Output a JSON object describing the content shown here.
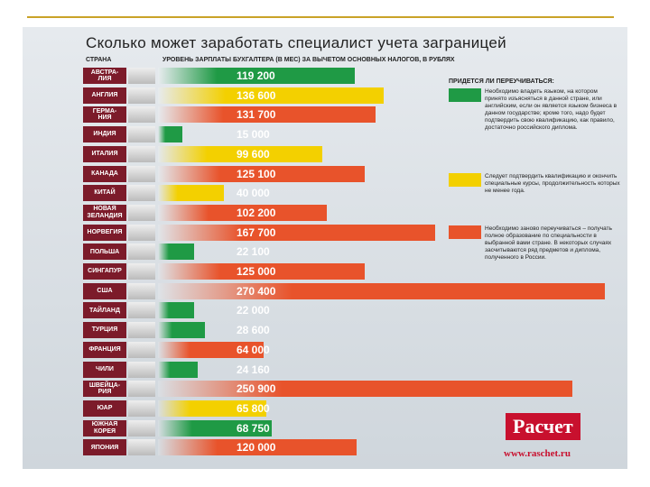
{
  "chart_data": {
    "type": "bar",
    "title": "Сколько может заработать специалист учета заграницей",
    "category_header": "СТРАНА",
    "value_header": "УРОВЕНЬ ЗАРПЛАТЫ БУХГАЛТЕРА (В МЕС) ЗА ВЫЧЕТОМ ОСНОВНЫХ НАЛОГОВ, В РУБЛЯХ",
    "categories": [
      "АВСТРА-\nЛИЯ",
      "АНГЛИЯ",
      "ГЕРМА-\nНИЯ",
      "ИНДИЯ",
      "ИТАЛИЯ",
      "КАНАДА",
      "КИТАЙ",
      "НОВАЯ\nЗЕЛАНДИЯ",
      "НОРВЕГИЯ",
      "ПОЛЬША",
      "СИНГАПУР",
      "США",
      "ТАЙЛАНД",
      "ТУРЦИЯ",
      "ФРАНЦИЯ",
      "ЧИЛИ",
      "ШВЕЙЦА-\nРИЯ",
      "ЮАР",
      "ЮЖНАЯ\nКОРЕЯ",
      "ЯПОНИЯ"
    ],
    "values": [
      119200,
      136600,
      131700,
      15000,
      99600,
      125100,
      40000,
      102200,
      167700,
      22100,
      125000,
      270400,
      22000,
      28600,
      64000,
      24160,
      250900,
      65800,
      68750,
      120000
    ],
    "value_labels": [
      "119 200",
      "136 600",
      "131 700",
      "15 000",
      "99 600",
      "125 100",
      "40 000",
      "102 200",
      "167 700",
      "22 100",
      "125 000",
      "270 400",
      "22 000",
      "28 600",
      "64 000",
      "24 160",
      "250 900",
      "65 800",
      "68 750",
      "120 000"
    ],
    "colors": [
      "#1f9a45",
      "#f3d000",
      "#e8532b",
      "#1f9a45",
      "#f3d000",
      "#e8532b",
      "#f3d000",
      "#e8532b",
      "#e8532b",
      "#1f9a45",
      "#e8532b",
      "#e8532b",
      "#1f9a45",
      "#1f9a45",
      "#e8532b",
      "#1f9a45",
      "#e8532b",
      "#f3d000",
      "#1f9a45",
      "#e8532b"
    ],
    "legend_title": "ПРИДЕТСЯ ЛИ ПЕРЕУЧИВАТЬСЯ:",
    "legend": [
      {
        "color": "#1f9a45",
        "text": "Необходимо владеть языком, на котором принято изъясняться в данной стране, или английским, если он является языком бизнеса в данном государстве; кроме того, надо будет подтвердить свою квалификацию, как правило, достаточно российского диплома."
      },
      {
        "color": "#f3d000",
        "text": "Следует подтвердить квалификацию и окончить специальные курсы, продолжительность которых не менее года."
      },
      {
        "color": "#e8532b",
        "text": "Необходимо заново переучиваться – получать полное образование по специальности в выбранной вами стране. В некоторых случаях засчитываются ряд предметов и диплома, полученного в России."
      }
    ],
    "logo": "Расчет",
    "url": "www.raschet.ru"
  }
}
